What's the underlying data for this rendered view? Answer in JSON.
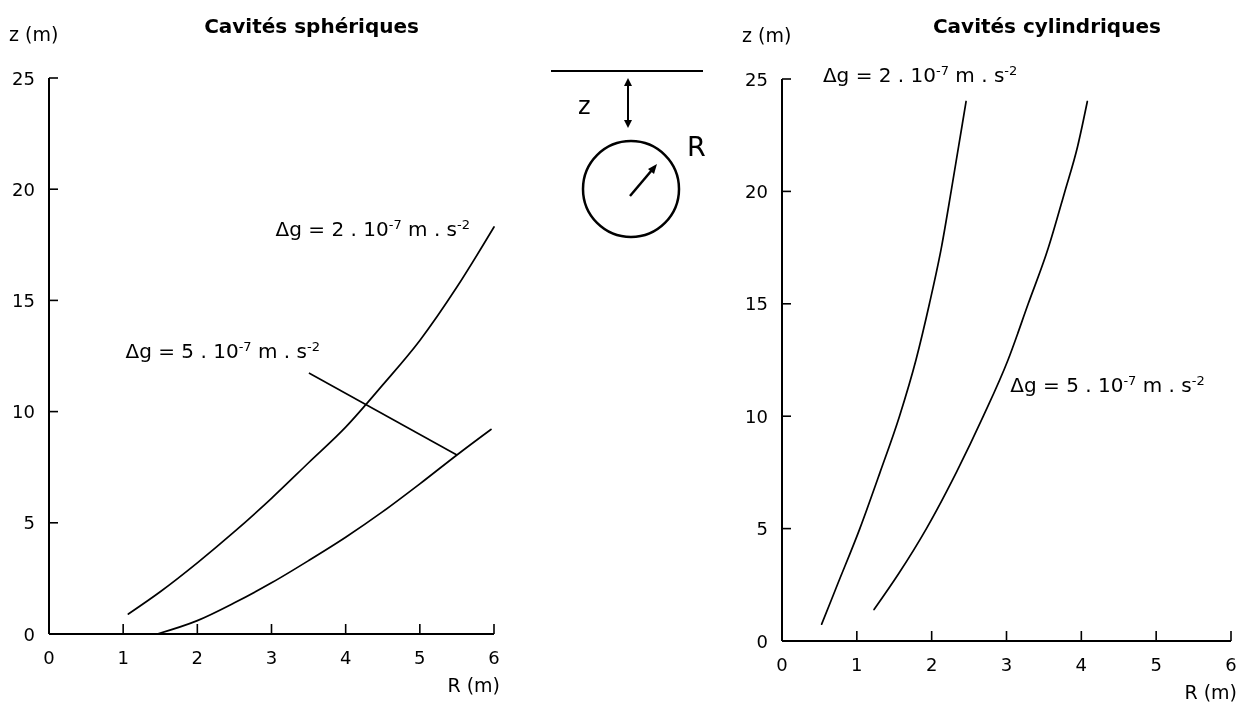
{
  "chart_data": [
    {
      "type": "line",
      "title": "Cavités sphériques",
      "xlabel": "R (m)",
      "ylabel": "z (m)",
      "xlim": [
        0,
        6
      ],
      "ylim": [
        0,
        25
      ],
      "xticks": [
        0,
        1,
        2,
        3,
        4,
        5,
        6
      ],
      "yticks": [
        0,
        5,
        10,
        15,
        20,
        25
      ],
      "annotations": [
        "z",
        "R"
      ],
      "series": [
        {
          "name": "Δg = 2 . 10$^{-7}$ m . s$^{-2}$",
          "color": "#000000",
          "x": [
            1.07,
            1.5,
            2,
            2.5,
            3,
            3.5,
            4,
            4.5,
            5,
            5.5,
            6
          ],
          "values": [
            0.9,
            1.9,
            3.2,
            4.6,
            6.1,
            7.7,
            9.3,
            11.2,
            13.2,
            15.6,
            18.3
          ]
        },
        {
          "name": "Δg = 5 . 10$^{-7}$ m . s$^{-2}$",
          "color": "#000000",
          "x": [
            1.46,
            2,
            2.5,
            3,
            3.5,
            4,
            4.5,
            5,
            5.5,
            5.96
          ],
          "values": [
            0,
            0.6,
            1.4,
            2.3,
            3.3,
            4.35,
            5.5,
            6.75,
            8.05,
            9.2
          ]
        }
      ]
    },
    {
      "type": "line",
      "title": "Cavités cylindriques",
      "xlabel": "R (m)",
      "ylabel": "z (m)",
      "xlim": [
        0,
        6
      ],
      "ylim": [
        0,
        25
      ],
      "xticks": [
        0,
        1,
        2,
        3,
        4,
        5,
        6
      ],
      "yticks": [
        0,
        5,
        10,
        15,
        20,
        25
      ],
      "series": [
        {
          "name": "Δg = 2 . 10$^{-7}$ m . s$^{-2}$",
          "color": "#000000",
          "x": [
            0.53,
            0.74,
            1.04,
            1.31,
            1.57,
            1.79,
            1.97,
            2.13,
            2.26,
            2.36,
            2.46
          ],
          "values": [
            0.75,
            2.5,
            5,
            7.5,
            10,
            12.5,
            15,
            17.5,
            20,
            22,
            24
          ]
        },
        {
          "name": "Δg = 5 . 10$^{-7}$ m . s$^{-2}$",
          "color": "#000000",
          "x": [
            1.23,
            1.56,
            1.93,
            2.33,
            2.69,
            3.02,
            3.29,
            3.56,
            3.78,
            3.95,
            4.08
          ],
          "values": [
            1.4,
            3,
            5,
            7.5,
            10,
            12.5,
            15,
            17.5,
            20,
            22,
            24
          ]
        }
      ]
    }
  ]
}
